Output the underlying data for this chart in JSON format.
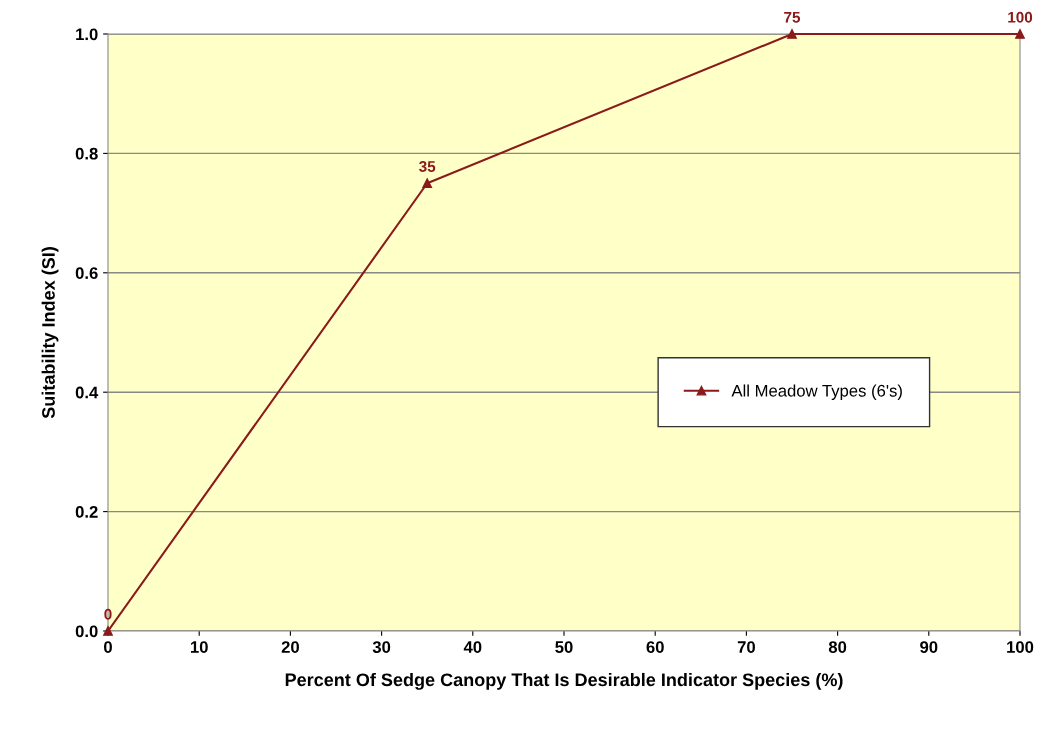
{
  "chart_data": {
    "type": "line",
    "xlabel": "Percent Of Sedge Canopy That Is Desirable Indicator Species (%)",
    "ylabel": "Suitability Index (SI)",
    "x": [
      0,
      35,
      75,
      100
    ],
    "series": [
      {
        "name": "All Meadow Types (6's)",
        "color": "#8b1a1a",
        "values": [
          0,
          0.75,
          1.0,
          1.0
        ]
      }
    ],
    "annotations": [
      {
        "text": "0",
        "x": 0,
        "y": 0
      },
      {
        "text": "35",
        "x": 35,
        "y": 0.75
      },
      {
        "text": "75",
        "x": 75,
        "y": 1.0
      },
      {
        "text": "100",
        "x": 100,
        "y": 1.0
      }
    ],
    "xlim": [
      0,
      100
    ],
    "xticks": [
      0,
      10,
      20,
      30,
      40,
      50,
      60,
      70,
      80,
      90,
      100
    ],
    "ylim": [
      0,
      1.0
    ],
    "yticks": [
      {
        "value": 0,
        "label": "0.0"
      },
      {
        "value": 0.2,
        "label": "0.2"
      },
      {
        "value": 0.4,
        "label": "0.4"
      },
      {
        "value": 0.6,
        "label": "0.6"
      },
      {
        "value": 0.8,
        "label": "0.8"
      },
      {
        "value": 1.0,
        "label": "1.0"
      }
    ],
    "grid": "y",
    "legend": "right",
    "marker": "triangle",
    "line_style": "solid"
  }
}
